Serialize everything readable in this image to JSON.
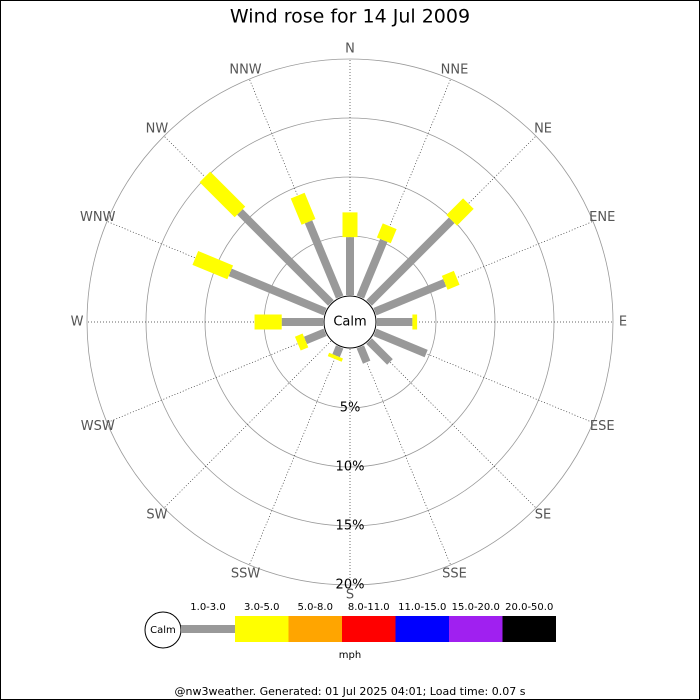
{
  "chart_data": {
    "type": "windrose",
    "title": "Wind rose for 14 Jul 2009",
    "categories": [
      "N",
      "NNE",
      "NE",
      "ENE",
      "E",
      "ESE",
      "SE",
      "SSE",
      "S",
      "SSW",
      "SW",
      "WSW",
      "W",
      "WNW",
      "NW",
      "NNW"
    ],
    "series": [
      {
        "name": "1.0-3.0",
        "color": "#999999",
        "values": [
          4.9,
          5.2,
          9.9,
          6.4,
          3.0,
          4.7,
          2.5,
          1.4,
          0,
          0.8,
          0,
          1.8,
          3.5,
          8.7,
          10.9,
          6.9
        ]
      },
      {
        "name": "3.0-5.0",
        "color": "#ffff00",
        "values": [
          2.1,
          1.3,
          2.0,
          1.1,
          0.4,
          0,
          0,
          0,
          0,
          0.3,
          0,
          0.7,
          2.3,
          3.2,
          4.2,
          2.4
        ]
      },
      {
        "name": "5.0-8.0",
        "color": "#ffa500",
        "values": [
          0,
          0,
          0,
          0,
          0,
          0,
          0,
          0,
          0,
          0,
          0,
          0,
          0,
          0,
          0,
          0
        ]
      },
      {
        "name": "8.0-11.0",
        "color": "#ff0000",
        "values": [
          0,
          0,
          0,
          0,
          0,
          0,
          0,
          0,
          0,
          0,
          0,
          0,
          0,
          0,
          0,
          0
        ]
      },
      {
        "name": "11.0-15.0",
        "color": "#0000ff",
        "values": [
          0,
          0,
          0,
          0,
          0,
          0,
          0,
          0,
          0,
          0,
          0,
          0,
          0,
          0,
          0,
          0
        ]
      },
      {
        "name": "15.0-20.0",
        "color": "#a020f0",
        "values": [
          0,
          0,
          0,
          0,
          0,
          0,
          0,
          0,
          0,
          0,
          0,
          0,
          0,
          0,
          0,
          0
        ]
      },
      {
        "name": "20.0-50.0",
        "color": "#000000",
        "values": [
          0,
          0,
          0,
          0,
          0,
          0,
          0,
          0,
          0,
          0,
          0,
          0,
          0,
          0,
          0,
          0
        ]
      }
    ],
    "ylim": [
      0,
      20
    ],
    "yticks": [
      {
        "value": 5,
        "label": "5%"
      },
      {
        "value": 10,
        "label": "10%"
      },
      {
        "value": 15,
        "label": "15%"
      },
      {
        "value": 20,
        "label": "20%"
      }
    ],
    "calm_label": "Calm",
    "unit": "mph",
    "footer": "@nw3weather.  Generated: 01 Jul 2025 04:01; Load time: 0.07 s"
  }
}
